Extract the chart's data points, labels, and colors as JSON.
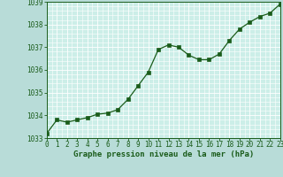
{
  "x": [
    0,
    1,
    2,
    3,
    4,
    5,
    6,
    7,
    8,
    9,
    10,
    11,
    12,
    13,
    14,
    15,
    16,
    17,
    18,
    19,
    20,
    21,
    22,
    23
  ],
  "y": [
    1033.2,
    1033.8,
    1033.7,
    1033.8,
    1033.9,
    1034.05,
    1034.1,
    1034.25,
    1034.7,
    1035.3,
    1035.9,
    1036.9,
    1037.1,
    1037.0,
    1036.65,
    1036.45,
    1036.45,
    1036.7,
    1037.3,
    1037.8,
    1038.1,
    1038.35,
    1038.5,
    1038.9
  ],
  "ylim": [
    1033,
    1039
  ],
  "yticks": [
    1033,
    1034,
    1035,
    1036,
    1037,
    1038,
    1039
  ],
  "xlim": [
    0,
    23
  ],
  "xticks": [
    0,
    1,
    2,
    3,
    4,
    5,
    6,
    7,
    8,
    9,
    10,
    11,
    12,
    13,
    14,
    15,
    16,
    17,
    18,
    19,
    20,
    21,
    22,
    23
  ],
  "xlabel": "Graphe pression niveau de la mer (hPa)",
  "line_color": "#1a5c1a",
  "marker_color": "#1a5c1a",
  "bg_plot": "#cceee8",
  "bg_fig": "#b8dcd8",
  "grid_color": "#ffffff",
  "tick_color": "#1a5c1a",
  "label_color": "#1a5c1a",
  "xlabel_fontsize": 6.5,
  "tick_fontsize": 5.5
}
